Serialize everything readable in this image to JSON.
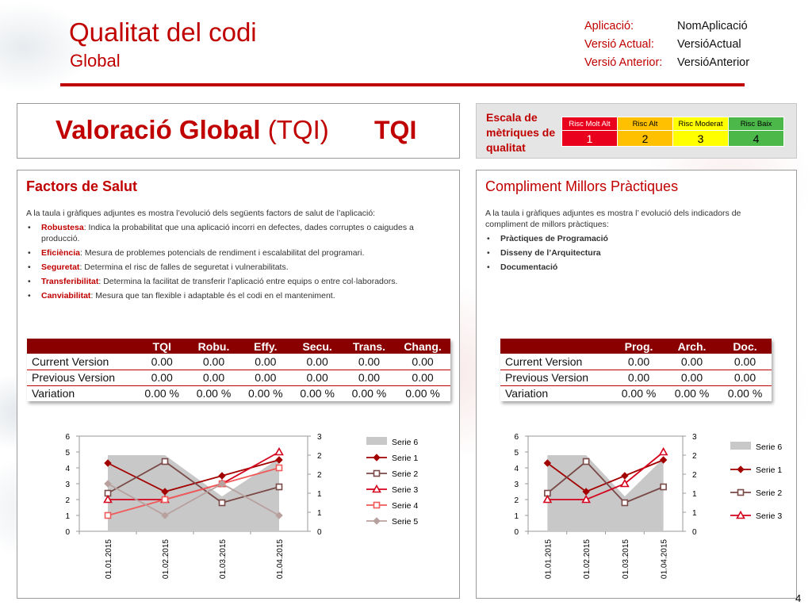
{
  "header": {
    "title": "Qualitat del codi",
    "subtitle": "Global",
    "meta": [
      {
        "label": "Aplicació:",
        "value": "NomAplicació"
      },
      {
        "label": "Versió Actual:",
        "value": "VersióActual"
      },
      {
        "label": "Versió Anterior:",
        "value": "VersióAnterior"
      }
    ]
  },
  "tqi": {
    "title_bold": "Valoració Global",
    "title_paren": "(TQI)",
    "value": "TQI"
  },
  "scale": {
    "title": "Escala de mètriques de qualitat",
    "levels": [
      {
        "label": "Risc Molt Alt",
        "number": "1",
        "color": "#e8001c",
        "text_color": "#ffffff"
      },
      {
        "label": "Risc Alt",
        "number": "2",
        "color": "#ffc000",
        "text_color": "#000000"
      },
      {
        "label": "Risc Moderat",
        "number": "3",
        "color": "#ffff00",
        "text_color": "#000000"
      },
      {
        "label": "Risc Baix",
        "number": "4",
        "color": "#4cb84a",
        "text_color": "#000000"
      }
    ]
  },
  "health": {
    "title": "Factors de Salut",
    "intro": "A la taula i gràfiques adjuntes es mostra l’evolució dels següents factors de salut de l’aplicació:",
    "bullets": [
      {
        "term": "Robustesa",
        "text": ": Indica la probabilitat que una aplicació incorri en defectes, dades corruptes o caigudes a producció."
      },
      {
        "term": "Eficiència",
        "text": ": Mesura de problemes potencials de rendiment i escalabilitat del programari."
      },
      {
        "term": "Seguretat",
        "text": ": Determina el risc de falles de seguretat i vulnerabilitats."
      },
      {
        "term": "Transferibilitat",
        "text": ":  Determina la facilitat de transferir l’aplicació entre equips o entre col·laboradors."
      },
      {
        "term": "Canviabilitat",
        "text": ": Mesura que tan flexible i adaptable és el codi en el manteniment."
      }
    ],
    "table": {
      "columns": [
        "TQI",
        "Robu.",
        "Effy.",
        "Secu.",
        "Trans.",
        "Chang."
      ],
      "rows": [
        {
          "label": "Current Version",
          "values": [
            "0.00",
            "0.00",
            "0.00",
            "0.00",
            "0.00",
            "0.00"
          ]
        },
        {
          "label": "Previous Version",
          "values": [
            "0.00",
            "0.00",
            "0.00",
            "0.00",
            "0.00",
            "0.00"
          ]
        },
        {
          "label": "Variation",
          "values": [
            "0.00 %",
            "0.00 %",
            "0.00 %",
            "0.00 %",
            "0.00 %",
            "0.00 %"
          ]
        }
      ]
    }
  },
  "practices": {
    "title": "Compliment Millors Pràctiques",
    "intro": "A la taula i gràfiques adjuntes es mostra l’ evolució dels indicadors de compliment de millors pràctiques:",
    "bullets": [
      {
        "term": "Pràctiques de Programació",
        "text": ""
      },
      {
        "term": "Disseny de l’Arquitectura",
        "text": ""
      },
      {
        "term": "Documentació",
        "text": ""
      }
    ],
    "table": {
      "columns": [
        "Prog.",
        "Arch.",
        "Doc."
      ],
      "rows": [
        {
          "label": "Current Version",
          "values": [
            "0.00",
            "0.00",
            "0.00"
          ]
        },
        {
          "label": "Previous Version",
          "values": [
            "0.00",
            "0.00",
            "0.00"
          ]
        },
        {
          "label": "Variation",
          "values": [
            "0.00 %",
            "0.00 %",
            "0.00 %"
          ]
        }
      ]
    }
  },
  "chart_data": [
    {
      "type": "line",
      "categories": [
        "01.01.2015",
        "01.02.2015",
        "01.03.2015",
        "01.04.2015"
      ],
      "y_left": {
        "ylim": [
          0,
          6
        ],
        "ticks": [
          "0",
          "1",
          "2",
          "3",
          "4",
          "5",
          "6"
        ]
      },
      "y_right": {
        "ylim": [
          0,
          3
        ],
        "ticks": [
          "0",
          "1",
          "1",
          "2",
          "2",
          "3"
        ]
      },
      "series": [
        {
          "name": "Serie 6",
          "kind": "area",
          "axis": "right",
          "values": [
            2.4,
            2.4,
            1.1,
            2.3
          ],
          "color": "#c8c8c8"
        },
        {
          "name": "Serie 1",
          "kind": "line",
          "marker": "diamond",
          "axis": "left",
          "values": [
            4.3,
            2.5,
            3.5,
            4.5
          ],
          "color": "#a30000"
        },
        {
          "name": "Serie 2",
          "kind": "line",
          "marker": "square",
          "axis": "left",
          "values": [
            2.4,
            4.4,
            1.8,
            2.8
          ],
          "color": "#7a4a48"
        },
        {
          "name": "Serie 3",
          "kind": "line",
          "marker": "triangle",
          "axis": "left",
          "values": [
            2.0,
            2.0,
            3.0,
            5.0
          ],
          "color": "#d4001c"
        },
        {
          "name": "Serie 4",
          "kind": "line",
          "marker": "square",
          "axis": "left",
          "values": [
            1.0,
            2.0,
            3.0,
            4.0
          ],
          "color": "#f05a5a"
        },
        {
          "name": "Serie 5",
          "kind": "line",
          "marker": "diamond",
          "axis": "left",
          "values": [
            3.0,
            1.0,
            3.0,
            1.0
          ],
          "color": "#b8a09e"
        }
      ]
    },
    {
      "type": "line",
      "categories": [
        "01.01.2015",
        "01.02.2015",
        "01.03.2015",
        "01.04.2015"
      ],
      "y_left": {
        "ylim": [
          0,
          6
        ],
        "ticks": [
          "0",
          "1",
          "2",
          "3",
          "4",
          "5",
          "6"
        ]
      },
      "y_right": {
        "ylim": [
          0,
          3
        ],
        "ticks": [
          "0",
          "1",
          "1",
          "2",
          "2",
          "3"
        ]
      },
      "series": [
        {
          "name": "Serie 6",
          "kind": "area",
          "axis": "right",
          "values": [
            2.4,
            2.4,
            1.1,
            2.3
          ],
          "color": "#c8c8c8"
        },
        {
          "name": "Serie 1",
          "kind": "line",
          "marker": "diamond",
          "axis": "left",
          "values": [
            4.3,
            2.5,
            3.5,
            4.5
          ],
          "color": "#a30000"
        },
        {
          "name": "Serie 2",
          "kind": "line",
          "marker": "square",
          "axis": "left",
          "values": [
            2.4,
            4.4,
            1.8,
            2.8
          ],
          "color": "#7a4a48"
        },
        {
          "name": "Serie 3",
          "kind": "line",
          "marker": "triangle",
          "axis": "left",
          "values": [
            2.0,
            2.0,
            3.0,
            5.0
          ],
          "color": "#d4001c"
        }
      ]
    }
  ],
  "page": {
    "number": "4"
  }
}
